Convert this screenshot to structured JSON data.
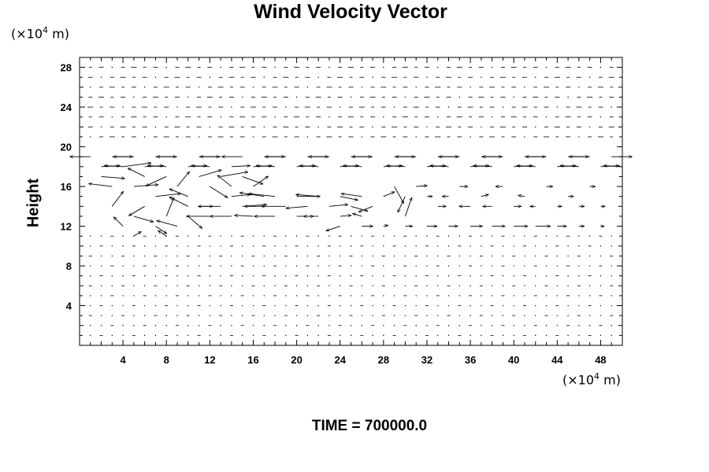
{
  "chart_data": {
    "type": "vector-field",
    "title": "Wind Velocity Vector",
    "ylabel": "Height",
    "xunit": {
      "prefix": "(×10",
      "exp": "4",
      "suffix": " m)"
    },
    "yunit": {
      "prefix": "(×10",
      "exp": "4",
      "suffix": " m)"
    },
    "xlim": [
      0,
      50
    ],
    "ylim": [
      0,
      29
    ],
    "xticks": [
      4,
      8,
      12,
      16,
      20,
      24,
      28,
      32,
      36,
      40,
      44,
      48
    ],
    "yticks": [
      4,
      8,
      12,
      16,
      20,
      24,
      28
    ],
    "grid": false,
    "vectors": [
      {
        "x": 2,
        "y": 17,
        "u": 2.5,
        "v": -0.2
      },
      {
        "x": 3,
        "y": 16,
        "u": -2.5,
        "v": 0.3
      },
      {
        "x": 4,
        "y": 18,
        "u": 3.0,
        "v": 0.4
      },
      {
        "x": 5,
        "y": 16,
        "u": 2.6,
        "v": 0.2
      },
      {
        "x": 6,
        "y": 17,
        "u": -1.8,
        "v": 0.9
      },
      {
        "x": 7,
        "y": 15,
        "u": 2.7,
        "v": 0.3
      },
      {
        "x": 8,
        "y": 17,
        "u": -2.2,
        "v": -1.0
      },
      {
        "x": 9,
        "y": 16,
        "u": 1.3,
        "v": 1.6
      },
      {
        "x": 10,
        "y": 15,
        "u": -2.0,
        "v": 0.8
      },
      {
        "x": 11,
        "y": 17,
        "u": 2.4,
        "v": 0.7
      },
      {
        "x": 12,
        "y": 16,
        "u": 1.9,
        "v": -1.2
      },
      {
        "x": 13,
        "y": 17,
        "u": 2.9,
        "v": 0.5
      },
      {
        "x": 14,
        "y": 16,
        "u": -1.5,
        "v": 1.2
      },
      {
        "x": 15,
        "y": 17,
        "u": 2.2,
        "v": -0.8
      },
      {
        "x": 16,
        "y": 16,
        "u": 1.6,
        "v": 1.1
      },
      {
        "x": 17,
        "y": 15,
        "u": -2.6,
        "v": 0.4
      },
      {
        "x": 3,
        "y": 14,
        "u": 1.2,
        "v": 1.6
      },
      {
        "x": 5,
        "y": 13,
        "u": 2.1,
        "v": -0.6
      },
      {
        "x": 6,
        "y": 14,
        "u": -1.7,
        "v": -1.0
      },
      {
        "x": 8,
        "y": 13,
        "u": 0.8,
        "v": 2.0
      },
      {
        "x": 9,
        "y": 12,
        "u": -2.2,
        "v": 0.6
      },
      {
        "x": 10,
        "y": 13,
        "u": 1.5,
        "v": -1.3
      },
      {
        "x": 4,
        "y": 12,
        "u": -1.0,
        "v": 1.0
      },
      {
        "x": 7,
        "y": 12,
        "u": 1.2,
        "v": -0.8
      },
      {
        "x": 5,
        "y": 11,
        "u": 0.8,
        "v": 0.5
      },
      {
        "x": 8,
        "y": 11,
        "u": -0.9,
        "v": 0.6
      },
      {
        "x": 18,
        "y": 15,
        "u": -2.8,
        "v": 0.3
      },
      {
        "x": 20,
        "y": 15,
        "u": 2.5,
        "v": 0.0
      },
      {
        "x": 22,
        "y": 15,
        "u": -2.4,
        "v": 0.2
      },
      {
        "x": 24,
        "y": 15,
        "u": 1.9,
        "v": -0.4
      },
      {
        "x": 26,
        "y": 15,
        "u": -2.2,
        "v": 0.3
      },
      {
        "x": 28,
        "y": 15,
        "u": 1.2,
        "v": 0.5
      },
      {
        "x": 19,
        "y": 14,
        "u": -2.6,
        "v": 0.0
      },
      {
        "x": 21,
        "y": 14,
        "u": -2.3,
        "v": -0.2
      },
      {
        "x": 23,
        "y": 14,
        "u": 2.0,
        "v": 0.2
      },
      {
        "x": 25,
        "y": 14,
        "u": 1.8,
        "v": -0.5
      },
      {
        "x": 27,
        "y": 14,
        "u": -1.5,
        "v": -0.6
      },
      {
        "x": 13,
        "y": 14,
        "u": -2.4,
        "v": 0.0
      },
      {
        "x": 15,
        "y": 14,
        "u": 2.6,
        "v": 0.2
      },
      {
        "x": 17,
        "y": 14,
        "u": -2.1,
        "v": 0.0
      },
      {
        "x": 11,
        "y": 14,
        "u": 1.5,
        "v": 0.0
      },
      {
        "x": 12,
        "y": 13,
        "u": -2.5,
        "v": 0.0
      },
      {
        "x": 14,
        "y": 13,
        "u": -2.3,
        "v": 0.0
      },
      {
        "x": 16,
        "y": 13,
        "u": -2.0,
        "v": 0.1
      },
      {
        "x": 18,
        "y": 13,
        "u": -2.2,
        "v": 0.0
      },
      {
        "x": 20,
        "y": 13,
        "u": 1.8,
        "v": 0.0
      },
      {
        "x": 22,
        "y": 13,
        "u": -1.6,
        "v": 0.0
      },
      {
        "x": 24,
        "y": 13,
        "u": 1.2,
        "v": 0.1
      },
      {
        "x": 26,
        "y": 13,
        "u": -1.0,
        "v": 0.3
      },
      {
        "x": 30,
        "y": 13,
        "u": 0.7,
        "v": 2.0
      },
      {
        "x": 29,
        "y": 16,
        "u": 1.0,
        "v": -1.8
      },
      {
        "x": 30,
        "y": 15,
        "u": -0.8,
        "v": -1.7
      },
      {
        "x": 24,
        "y": 12,
        "u": -1.5,
        "v": -0.5
      },
      {
        "x": 26,
        "y": 12,
        "u": 1.2,
        "v": 0.0
      },
      {
        "x": 14,
        "y": 15,
        "u": 2.0,
        "v": 0.2
      },
      {
        "x": 10,
        "y": 14,
        "u": -2.0,
        "v": 1.0
      },
      {
        "x": 31,
        "y": 16,
        "u": 1.2,
        "v": 0.1
      },
      {
        "x": 32,
        "y": 15,
        "u": 0.6,
        "v": 0.0
      },
      {
        "x": 33,
        "y": 14,
        "u": 0.9,
        "v": 0.0
      },
      {
        "x": 34,
        "y": 15,
        "u": -0.7,
        "v": 0.0
      },
      {
        "x": 36,
        "y": 14,
        "u": -1.2,
        "v": 0.0
      },
      {
        "x": 38,
        "y": 14,
        "u": -1.0,
        "v": 0.0
      },
      {
        "x": 40,
        "y": 14,
        "u": 0.8,
        "v": 0.0
      },
      {
        "x": 42,
        "y": 14,
        "u": -0.6,
        "v": 0.0
      },
      {
        "x": 44,
        "y": 14,
        "u": 0.5,
        "v": 0.0
      },
      {
        "x": 46,
        "y": 14,
        "u": 0.6,
        "v": 0.0
      },
      {
        "x": 48,
        "y": 14,
        "u": 0.5,
        "v": 0.0
      },
      {
        "x": 37,
        "y": 15,
        "u": 0.8,
        "v": 0.2
      },
      {
        "x": 41,
        "y": 15,
        "u": -0.7,
        "v": 0.1
      },
      {
        "x": 45,
        "y": 15,
        "u": 0.6,
        "v": 0.0
      },
      {
        "x": 35,
        "y": 16,
        "u": 0.9,
        "v": 0.0
      },
      {
        "x": 39,
        "y": 16,
        "u": -0.8,
        "v": 0.0
      },
      {
        "x": 43,
        "y": 16,
        "u": 0.7,
        "v": 0.0
      },
      {
        "x": 47,
        "y": 16,
        "u": 0.6,
        "v": 0.0
      },
      {
        "x": 32,
        "y": 12,
        "u": 1.1,
        "v": 0.0
      },
      {
        "x": 34,
        "y": 12,
        "u": 1.0,
        "v": 0.0
      },
      {
        "x": 36,
        "y": 12,
        "u": 1.3,
        "v": 0.0
      },
      {
        "x": 38,
        "y": 12,
        "u": 1.4,
        "v": 0.0
      },
      {
        "x": 40,
        "y": 12,
        "u": 1.5,
        "v": 0.0
      },
      {
        "x": 42,
        "y": 12,
        "u": 1.6,
        "v": 0.0
      },
      {
        "x": 44,
        "y": 12,
        "u": 1.0,
        "v": 0.0
      },
      {
        "x": 46,
        "y": 12,
        "u": 0.6,
        "v": 0.0
      },
      {
        "x": 48,
        "y": 12,
        "u": 0.4,
        "v": 0.0
      },
      {
        "x": 30,
        "y": 12,
        "u": 0.8,
        "v": 0.0
      },
      {
        "x": 28,
        "y": 12,
        "u": 0.5,
        "v": 0.1
      }
    ]
  },
  "time_label": "TIME = 700000.0"
}
